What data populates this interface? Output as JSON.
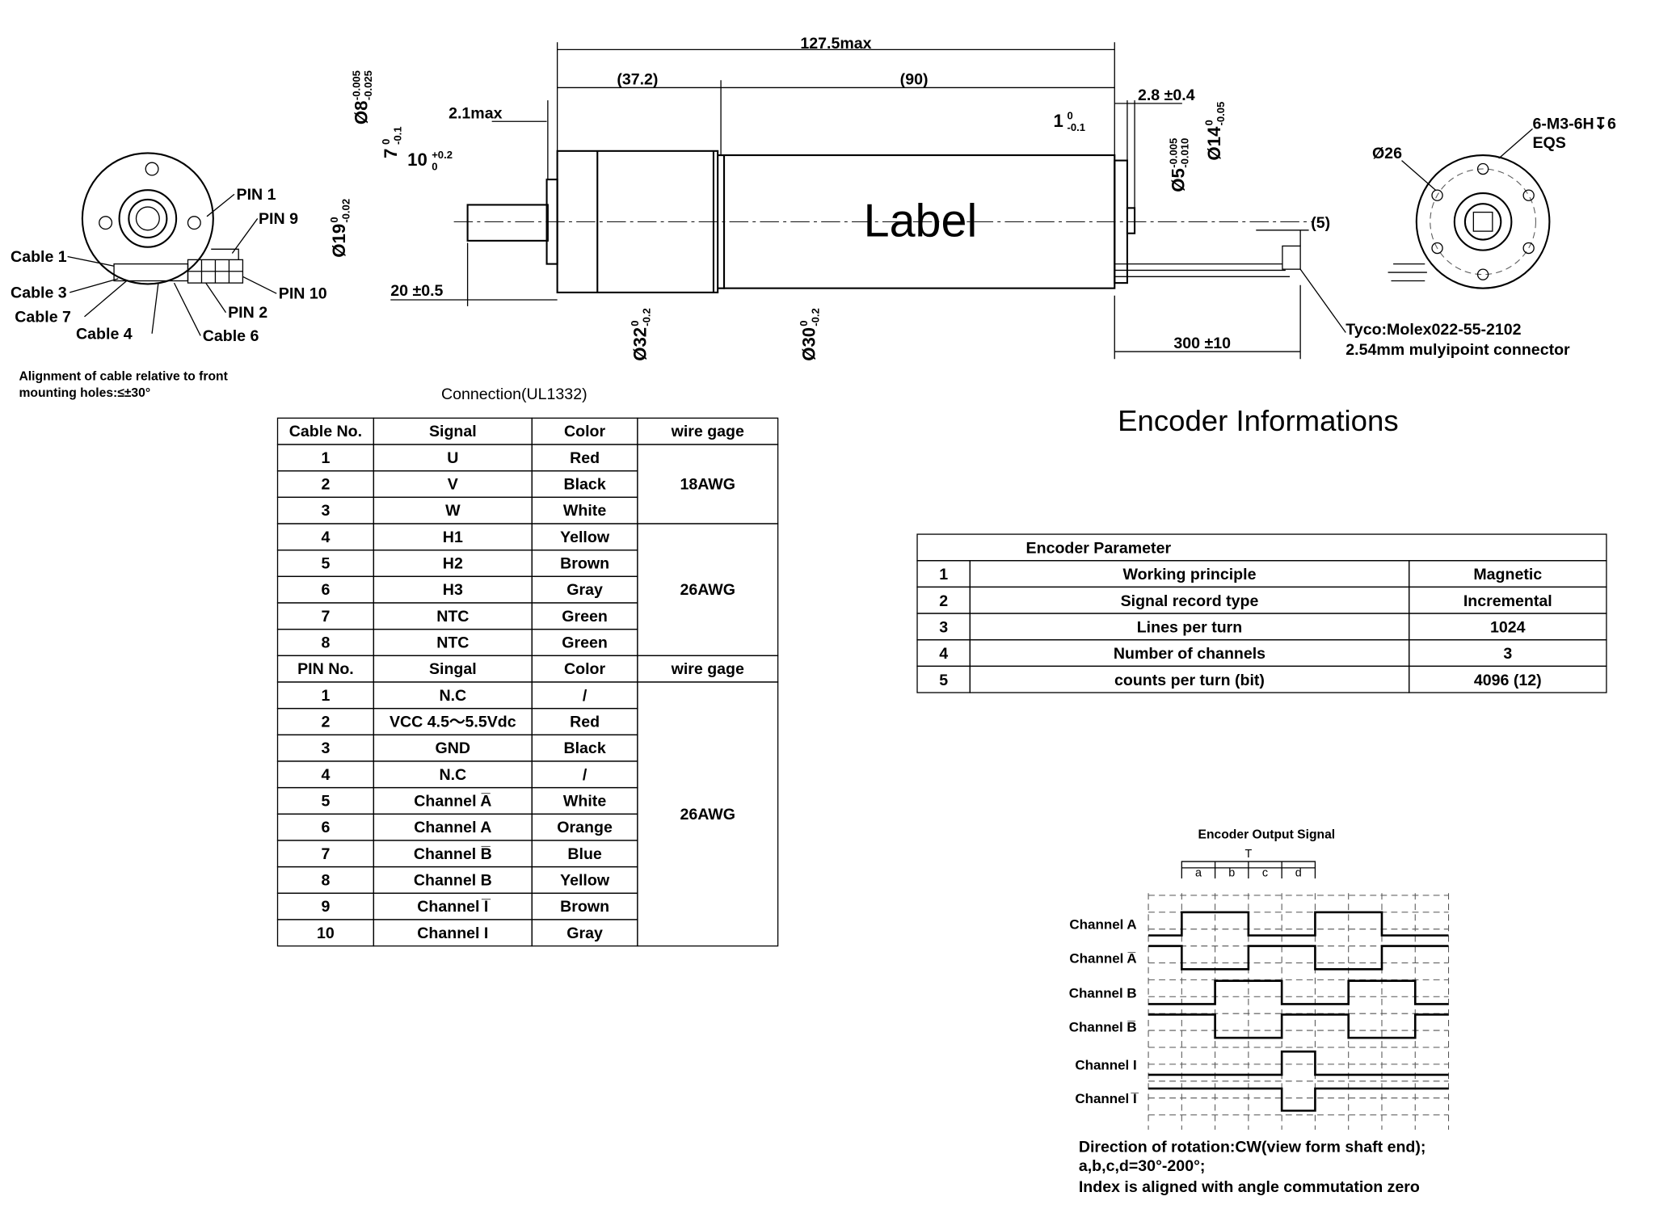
{
  "front_view": {
    "labels": [
      "PIN 1",
      "PIN 9",
      "Cable 1",
      "Cable 3",
      "Cable 7",
      "Cable 4",
      "Cable 6",
      "PIN 10",
      "PIN 2"
    ],
    "note": [
      "Alignment of cable relative to front",
      "mounting holes:≤±30°"
    ]
  },
  "side_view": {
    "label": "Label",
    "dims": [
      "127.5max",
      "(37.2)",
      "(90)",
      "2.1max",
      "2.8 ±0.4",
      "20 ±0.5",
      "300 ±10",
      "(5)"
    ],
    "tol_dims": [
      {
        "value": "Ø8",
        "upper": "-0.005",
        "lower": "-0.025"
      },
      {
        "value": "7",
        "upper": "0",
        "lower": "-0.1"
      },
      {
        "value": "10",
        "upper": "+0.2",
        "lower": "0"
      },
      {
        "value": "Ø19",
        "upper": "0",
        "lower": "-0.02"
      },
      {
        "value": "Ø32",
        "upper": "0",
        "lower": "-0.2"
      },
      {
        "value": "Ø30",
        "upper": "0",
        "lower": "-0.2"
      },
      {
        "value": "1",
        "upper": "0",
        "lower": "-0.1"
      },
      {
        "value": "Ø5",
        "upper": "-0.005",
        "lower": "-0.010"
      },
      {
        "value": "Ø14",
        "upper": "0",
        "lower": "-0.05"
      }
    ],
    "connector_note": [
      "Tyco:Molex022-55-2102",
      "2.54mm mulyipoint connector"
    ]
  },
  "rear_view": {
    "labels": [
      "Ø26",
      "6-M3-6H↧6",
      "EQS"
    ]
  },
  "connection_table": {
    "title": "Connection(UL1332)",
    "header1": [
      "Cable No.",
      "Signal",
      "Color",
      "wire gage"
    ],
    "rows1": [
      [
        "1",
        "U",
        "Red"
      ],
      [
        "2",
        "V",
        "Black"
      ],
      [
        "3",
        "W",
        "White"
      ],
      [
        "4",
        "H1",
        "Yellow"
      ],
      [
        "5",
        "H2",
        "Brown"
      ],
      [
        "6",
        "H3",
        "Gray"
      ],
      [
        "7",
        "NTC",
        "Green"
      ],
      [
        "8",
        "NTC",
        "Green"
      ]
    ],
    "gage1": [
      "18AWG",
      "26AWG"
    ],
    "header2": [
      "PIN No.",
      "Singal",
      "Color",
      "wire gage"
    ],
    "rows2": [
      [
        "1",
        "N.C",
        "/"
      ],
      [
        "2",
        "VCC 4.5～5.5Vdc",
        "Red"
      ],
      [
        "3",
        "GND",
        "Black"
      ],
      [
        "4",
        "N.C",
        "/"
      ],
      [
        "5",
        "Channel A̅",
        "White"
      ],
      [
        "6",
        "Channel A",
        "Orange"
      ],
      [
        "7",
        "Channel B̅",
        "Blue"
      ],
      [
        "8",
        "Channel B",
        "Yellow"
      ],
      [
        "9",
        "Channel I̅",
        "Brown"
      ],
      [
        "10",
        "Channel I",
        "Gray"
      ]
    ],
    "gage2": [
      "26AWG"
    ]
  },
  "encoder": {
    "title": "Encoder Informations",
    "header": "Encoder Parameter",
    "rows": [
      [
        "1",
        "Working principle",
        "Magnetic"
      ],
      [
        "2",
        "Signal record type",
        "Incremental"
      ],
      [
        "3",
        "Lines per turn",
        "1024"
      ],
      [
        "4",
        "Number of channels",
        "3"
      ],
      [
        "5",
        "counts per turn (bit)",
        "4096 (12)"
      ]
    ]
  },
  "signal": {
    "title": "Encoder Output Signal",
    "period": "T",
    "segments": [
      "a",
      "b",
      "c",
      "d"
    ],
    "channels": [
      "Channel A",
      "Channel A̅",
      "Channel B",
      "Channel B̅",
      "Channel I",
      "Channel I̅"
    ],
    "notes": [
      "Direction of rotation:CW(view form shaft end);",
      "a,b,c,d=30°-200°;",
      "Index is aligned with angle commutation zero"
    ]
  }
}
